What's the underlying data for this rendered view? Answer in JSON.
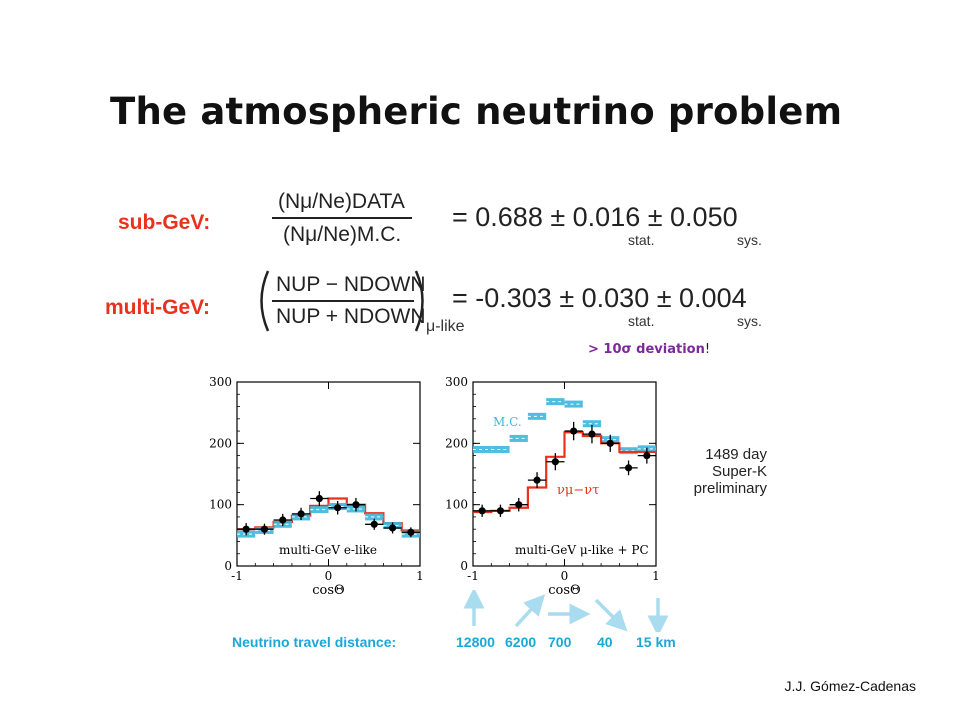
{
  "title": "The atmospheric neutrino problem",
  "formula": {
    "subgev_label": "sub-GeV:",
    "subgev_numerator": "(Nμ/Ne)DATA",
    "subgev_denominator": "(Nμ/Ne)M.C.",
    "subgev_result": "=  0.688 ± 0.016 ± 0.050",
    "stat_label": "stat.",
    "sys_label": "sys.",
    "multigev_label": "multi-GeV:",
    "multigev_numerator": "NUP − NDOWN",
    "multigev_denominator": "NUP + NDOWN",
    "multigev_subscript": "μ-like",
    "multigev_result": "= -0.303 ± 0.030 ± 0.004"
  },
  "deviation": {
    "text": "> 10σ deviation",
    "bang": "!"
  },
  "info_lines": [
    "1489 day",
    "Super-K",
    "preliminary"
  ],
  "travel": {
    "label": "Neutrino travel distance:",
    "distances": [
      "12800",
      "6200",
      "700",
      "40",
      "15 km"
    ]
  },
  "credit": "J.J. Gómez-Cadenas",
  "colors": {
    "red": "#e8321c",
    "cyan": "#3cb6dc",
    "purple": "#7b2a9b",
    "arrow": "#a9dcef"
  },
  "chart_data": [
    {
      "type": "line",
      "annotation": "multi-GeV e-like",
      "xlabel": "cosΘ",
      "ylabel": "",
      "xlim": [
        -1,
        1
      ],
      "ylim": [
        0,
        300
      ],
      "xticks": [
        -1,
        0,
        1
      ],
      "yticks": [
        0,
        100,
        200,
        300
      ],
      "bin_edges": [
        -1,
        -0.8,
        -0.6,
        -0.4,
        -0.2,
        0,
        0.2,
        0.4,
        0.6,
        0.8,
        1
      ],
      "series": [
        {
          "values": [
            60,
            63,
            72,
            82,
            98,
            110,
            100,
            86,
            70,
            58
          ]
        },
        {
          "values": [
            52,
            58,
            68,
            80,
            92,
            97,
            93,
            80,
            66,
            52
          ]
        },
        {
          "values": [
            60,
            60,
            75,
            85,
            110,
            95,
            100,
            68,
            62,
            55
          ],
          "errors": [
            10,
            9,
            10,
            10,
            12,
            11,
            11,
            9,
            9,
            8
          ]
        }
      ]
    },
    {
      "type": "line",
      "annotation": "multi-GeV μ-like + PC",
      "mc_label": "M.C.",
      "osc_label": "νμ−ντ",
      "xlabel": "cosΘ",
      "ylabel": "",
      "xlim": [
        -1,
        1
      ],
      "ylim": [
        0,
        300
      ],
      "xticks": [
        -1,
        0,
        1
      ],
      "yticks": [
        0,
        100,
        200,
        300
      ],
      "bin_edges": [
        -1,
        -0.8,
        -0.6,
        -0.4,
        -0.2,
        0,
        0.2,
        0.4,
        0.6,
        0.8,
        1
      ],
      "series": [
        {
          "values": [
            190,
            190,
            208,
            244,
            268,
            264,
            232,
            206,
            188,
            191
          ]
        },
        {
          "values": [
            88,
            90,
            95,
            128,
            178,
            218,
            212,
            200,
            186,
            186
          ]
        },
        {
          "values": [
            90,
            90,
            100,
            140,
            170,
            220,
            215,
            200,
            160,
            180
          ],
          "errors": [
            10,
            10,
            11,
            13,
            14,
            15,
            15,
            14,
            12,
            13
          ]
        }
      ]
    }
  ]
}
